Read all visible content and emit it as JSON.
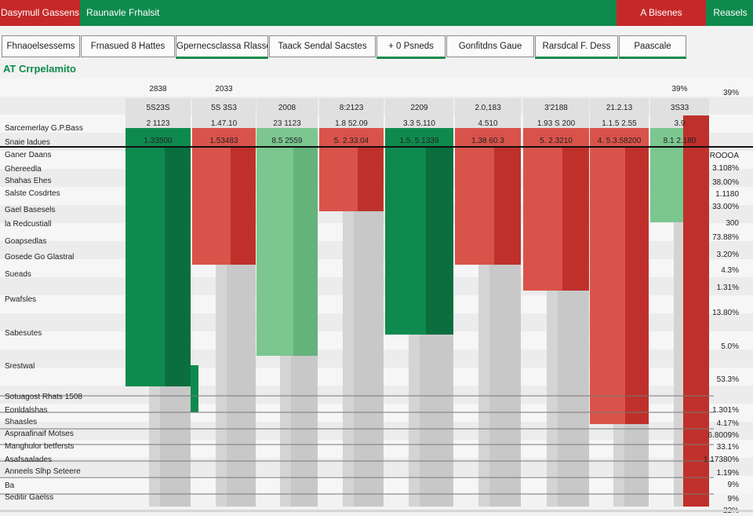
{
  "topbar": {
    "left_label": "Dasymull Gassens",
    "title": "Raunavle Frhalsit",
    "alert_label": "A Bisenes",
    "right_label": "Reasels"
  },
  "tabs": [
    {
      "label": "Fhnaoelsessems"
    },
    {
      "label": "Frnasued 8 Hattes"
    },
    {
      "label": "Gpernecsclassa Rlasse"
    },
    {
      "label": "Taack Sendal Sacstes"
    },
    {
      "label": "+ 0 Psneds"
    },
    {
      "label": "Gonfitdns Gaue"
    },
    {
      "label": "Rarsdcal F. Dess"
    },
    {
      "label": "Paascale"
    }
  ],
  "section": {
    "title": "AT Crrpelamito"
  },
  "row_labels": [
    "Sarcemerlay G.P.Bass",
    "Snaie ladues",
    "Ganer Daans",
    "Ghereedla",
    "Shahas Ehes",
    "Salste Cosdrtes",
    "Gael Basesels",
    "la Redcustiall",
    "Goapsedlas",
    "Gosede Go Glastral",
    "Sueads",
    "Pwafsles",
    "Sabesutes",
    "Srestwal",
    "Sotuagost Rhats 1508",
    "Eonldalshas",
    "Shaasles",
    "Aspraafinaif Motses",
    "Manghulor betfersts",
    "Asafsaalades",
    "Anneels Slhp Seteere",
    "Ba",
    "Seditir Gaelss"
  ],
  "pct_labels": [
    "39%",
    "ROOOA",
    "3.108%",
    "38.00%",
    "1.1180",
    "33.00%",
    "300",
    "73.88%",
    "3.20%",
    "4.3%",
    "1.31%",
    "13.80%",
    "5.0%",
    "53.3%",
    "1.301%",
    "4.17%",
    "6.8009%",
    "33.1%",
    "1.17380%",
    "1.19%",
    "9%",
    "9%",
    "22%"
  ],
  "columns": [
    {
      "top": "2838",
      "mid": "5S23S",
      "low": "2 1123",
      "sel": "1.33500",
      "h": "HIGH",
      "dir": "up"
    },
    {
      "top": "2033",
      "mid": "5S 3S3",
      "low": "1.47.10",
      "sel": "1.53483",
      "h": "LOW",
      "dir": "down"
    },
    {
      "top": "",
      "mid": "2008",
      "low": "23 1123",
      "sel": "8.5 2559",
      "h": "HIGH",
      "dir": "up"
    },
    {
      "top": "",
      "mid": "8:2123",
      "low": "1.8 52.09",
      "sel": "5. 2.33.04",
      "h": "LOW",
      "dir": "down"
    },
    {
      "top": "",
      "mid": "2209",
      "low": "3.3 5.110",
      "sel": "1.5. 5.1339",
      "h": "HIGH",
      "dir": "up"
    },
    {
      "top": "",
      "mid": "2.0,183",
      "low": "4.510",
      "sel": "1.38 60.3",
      "h": "LOW",
      "dir": "down"
    },
    {
      "top": "",
      "mid": "3'2188",
      "low": "1.93 S 200",
      "sel": "5. 2.3210",
      "h": "LOW",
      "dir": "down"
    },
    {
      "top": "",
      "mid": "21.2.13",
      "low": "1.1.5 2.55",
      "sel": "4. 5.3.58200",
      "h": "LOW",
      "dir": "down"
    },
    {
      "top": "39%",
      "mid": "3S33",
      "low": "3.9",
      "sel": "8.1 2.180",
      "h": "HIGH",
      "dir": "up"
    }
  ],
  "colors": {
    "green_dark": "#0f8a4e",
    "green_light": "#7cc690",
    "red": "#d9534a",
    "red_dark": "#c0302b",
    "gray": "#d4d4d4"
  }
}
